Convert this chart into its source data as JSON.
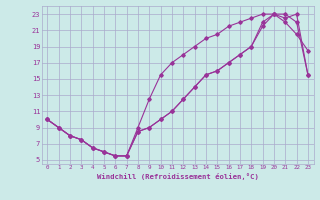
{
  "background_color": "#cceae8",
  "grid_color": "#aaaacc",
  "line_color": "#993399",
  "marker_color": "#993399",
  "xlabel": "Windchill (Refroidissement éolien,°C)",
  "xlim": [
    -0.5,
    23.5
  ],
  "ylim": [
    4.5,
    24.0
  ],
  "xticks": [
    0,
    1,
    2,
    3,
    4,
    5,
    6,
    7,
    8,
    9,
    10,
    11,
    12,
    13,
    14,
    15,
    16,
    17,
    18,
    19,
    20,
    21,
    22,
    23
  ],
  "yticks": [
    5,
    7,
    9,
    11,
    13,
    15,
    17,
    19,
    21,
    23
  ],
  "curve1_x": [
    0,
    1,
    2,
    3,
    4,
    5,
    6,
    7,
    8,
    9,
    10,
    11,
    12,
    13,
    14,
    15,
    16,
    17,
    18,
    19,
    20,
    21,
    22,
    23
  ],
  "curve1_y": [
    10,
    9,
    8,
    7.5,
    6.5,
    6,
    5.5,
    5.5,
    9,
    12.5,
    15.5,
    17,
    18,
    19,
    20,
    20.5,
    21.5,
    22,
    22.5,
    23,
    23,
    22,
    20.5,
    18.5
  ],
  "curve2_x": [
    0,
    1,
    2,
    3,
    4,
    5,
    6,
    7,
    8,
    9,
    10,
    11,
    12,
    13,
    14,
    15,
    16,
    17,
    18,
    19,
    20,
    21,
    22,
    23
  ],
  "curve2_y": [
    10,
    9,
    8,
    7.5,
    6.5,
    6,
    5.5,
    5.5,
    8.5,
    9,
    10,
    11,
    12.5,
    14,
    15.5,
    16,
    17,
    18,
    19,
    21.5,
    23,
    22.5,
    23,
    15.5
  ],
  "curve3_x": [
    0,
    1,
    2,
    3,
    4,
    5,
    6,
    7,
    8,
    9,
    10,
    11,
    12,
    13,
    14,
    15,
    16,
    17,
    18,
    19,
    20,
    21,
    22,
    23
  ],
  "curve3_y": [
    10,
    9,
    8,
    7.5,
    6.5,
    6,
    5.5,
    5.5,
    8.5,
    9,
    10,
    11,
    12.5,
    14,
    15.5,
    16,
    17,
    18,
    19,
    22,
    23,
    23,
    22,
    15.5
  ]
}
